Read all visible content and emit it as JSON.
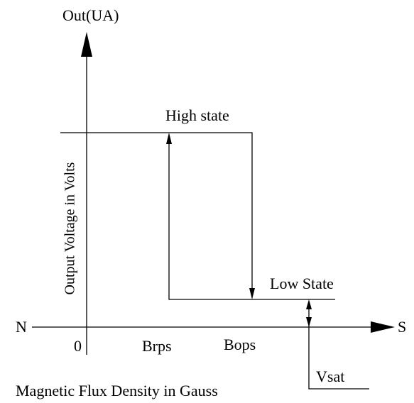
{
  "y_axis_label": "Out(UA)",
  "rotated_label": "Output Voltage in Volts",
  "x_axis_left": "N",
  "x_axis_right": "S",
  "origin": "0",
  "high_label": "High state",
  "low_label": "Low State",
  "brps_label": "Brps",
  "bops_label": "Bops",
  "vsat_label": "Vsat",
  "x_axis_title": "Magnetic Flux Density in Gauss"
}
